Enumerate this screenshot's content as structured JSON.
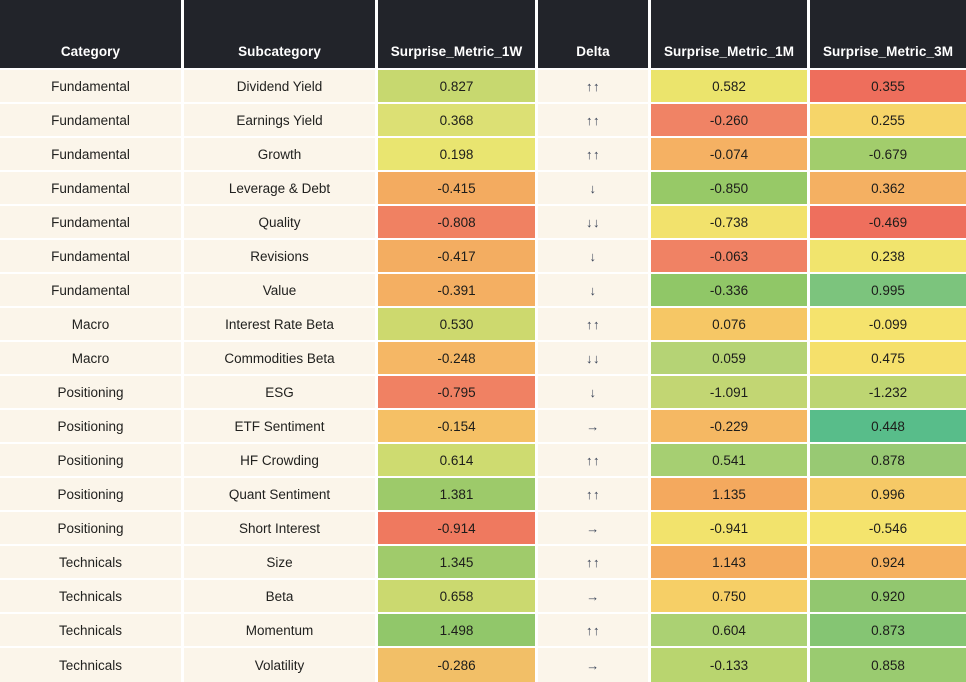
{
  "style": {
    "header_bg": "#22242a",
    "header_text": "#ffffff",
    "row_bg": "#fbf5ea",
    "text_color": "#21211f",
    "delta_color": "#3a4458",
    "separator_color": "#ffffff"
  },
  "chart_data": {
    "type": "heatmap-table",
    "columns": [
      "Category",
      "Subcategory",
      "Surprise_Metric_1W",
      "Delta",
      "Surprise_Metric_1M",
      "Surprise_Metric_3M"
    ],
    "rows": [
      {
        "category": "Fundamental",
        "subcategory": "Dividend Yield",
        "w1": "0.827",
        "w1_color": "#c7d86f",
        "delta": "↑↑",
        "m1": "0.582",
        "m1_color": "#ebe46c",
        "m3": "0.355",
        "m3_color": "#ee6e5c"
      },
      {
        "category": "Fundamental",
        "subcategory": "Earnings Yield",
        "w1": "0.368",
        "w1_color": "#dce074",
        "delta": "↑↑",
        "m1": "-0.260",
        "m1_color": "#f08365",
        "m3": "0.255",
        "m3_color": "#f6d569"
      },
      {
        "category": "Fundamental",
        "subcategory": "Growth",
        "w1": "0.198",
        "w1_color": "#e9e570",
        "delta": "↑↑",
        "m1": "-0.074",
        "m1_color": "#f5b163",
        "m3": "-0.679",
        "m3_color": "#a2cd6c"
      },
      {
        "category": "Fundamental",
        "subcategory": "Leverage & Debt",
        "w1": "-0.415",
        "w1_color": "#f3ab60",
        "delta": "↓",
        "m1": "-0.850",
        "m1_color": "#97c967",
        "m3": "0.362",
        "m3_color": "#f4b062"
      },
      {
        "category": "Fundamental",
        "subcategory": "Quality",
        "w1": "-0.808",
        "w1_color": "#f08162",
        "delta": "↓↓",
        "m1": "-0.738",
        "m1_color": "#f2e26c",
        "m3": "-0.469",
        "m3_color": "#ee6f5d"
      },
      {
        "category": "Fundamental",
        "subcategory": "Revisions",
        "w1": "-0.417",
        "w1_color": "#f3ad61",
        "delta": "↓",
        "m1": "-0.063",
        "m1_color": "#f08264",
        "m3": "0.238",
        "m3_color": "#f1e46d"
      },
      {
        "category": "Fundamental",
        "subcategory": "Value",
        "w1": "-0.391",
        "w1_color": "#f4af62",
        "delta": "↓",
        "m1": "-0.336",
        "m1_color": "#90c767",
        "m3": "0.995",
        "m3_color": "#7cc47d"
      },
      {
        "category": "Macro",
        "subcategory": "Interest Rate Beta",
        "w1": "0.530",
        "w1_color": "#cdd96e",
        "delta": "↑↑",
        "m1": "0.076",
        "m1_color": "#f6c765",
        "m3": "-0.099",
        "m3_color": "#f5e36d"
      },
      {
        "category": "Macro",
        "subcategory": "Commodities Beta",
        "w1": "-0.248",
        "w1_color": "#f5b765",
        "delta": "↓↓",
        "m1": "0.059",
        "m1_color": "#b5d375",
        "m3": "0.475",
        "m3_color": "#f5e06b"
      },
      {
        "category": "Positioning",
        "subcategory": "ESG",
        "w1": "-0.795",
        "w1_color": "#f08163",
        "delta": "↓",
        "m1": "-1.091",
        "m1_color": "#c2d673",
        "m3": "-1.232",
        "m3_color": "#bdd572"
      },
      {
        "category": "Positioning",
        "subcategory": "ETF Sentiment",
        "w1": "-0.154",
        "w1_color": "#f5c065",
        "delta": "→",
        "m1": "-0.229",
        "m1_color": "#f5b863",
        "m3": "0.448",
        "m3_color": "#58bd8a"
      },
      {
        "category": "Positioning",
        "subcategory": "HF Crowding",
        "w1": "0.614",
        "w1_color": "#cedb70",
        "delta": "↑↑",
        "m1": "0.541",
        "m1_color": "#a6cf72",
        "m3": "0.878",
        "m3_color": "#98c973"
      },
      {
        "category": "Positioning",
        "subcategory": "Quant Sentiment",
        "w1": "1.381",
        "w1_color": "#9dca6a",
        "delta": "↑↑",
        "m1": "1.135",
        "m1_color": "#f4a95e",
        "m3": "0.996",
        "m3_color": "#f6c966"
      },
      {
        "category": "Positioning",
        "subcategory": "Short Interest",
        "w1": "-0.914",
        "w1_color": "#ef795f",
        "delta": "→",
        "m1": "-0.941",
        "m1_color": "#f2e36c",
        "m3": "-0.546",
        "m3_color": "#f4e46d"
      },
      {
        "category": "Technicals",
        "subcategory": "Size",
        "w1": "1.345",
        "w1_color": "#a0cb6b",
        "delta": "↑↑",
        "m1": "1.143",
        "m1_color": "#f4ab5e",
        "m3": "0.924",
        "m3_color": "#f5b160"
      },
      {
        "category": "Technicals",
        "subcategory": "Beta",
        "w1": "0.658",
        "w1_color": "#cbd96f",
        "delta": "→",
        "m1": "0.750",
        "m1_color": "#f6cf66",
        "m3": "0.920",
        "m3_color": "#92c76f"
      },
      {
        "category": "Technicals",
        "subcategory": "Momentum",
        "w1": "1.498",
        "w1_color": "#91c76a",
        "delta": "↑↑",
        "m1": "0.604",
        "m1_color": "#abd173",
        "m3": "0.873",
        "m3_color": "#85c573"
      },
      {
        "category": "Technicals",
        "subcategory": "Volatility",
        "w1": "-0.286",
        "w1_color": "#f2bf67",
        "delta": "→",
        "m1": "-0.133",
        "m1_color": "#b9d56f",
        "m3": "0.858",
        "m3_color": "#9acb70"
      }
    ]
  }
}
